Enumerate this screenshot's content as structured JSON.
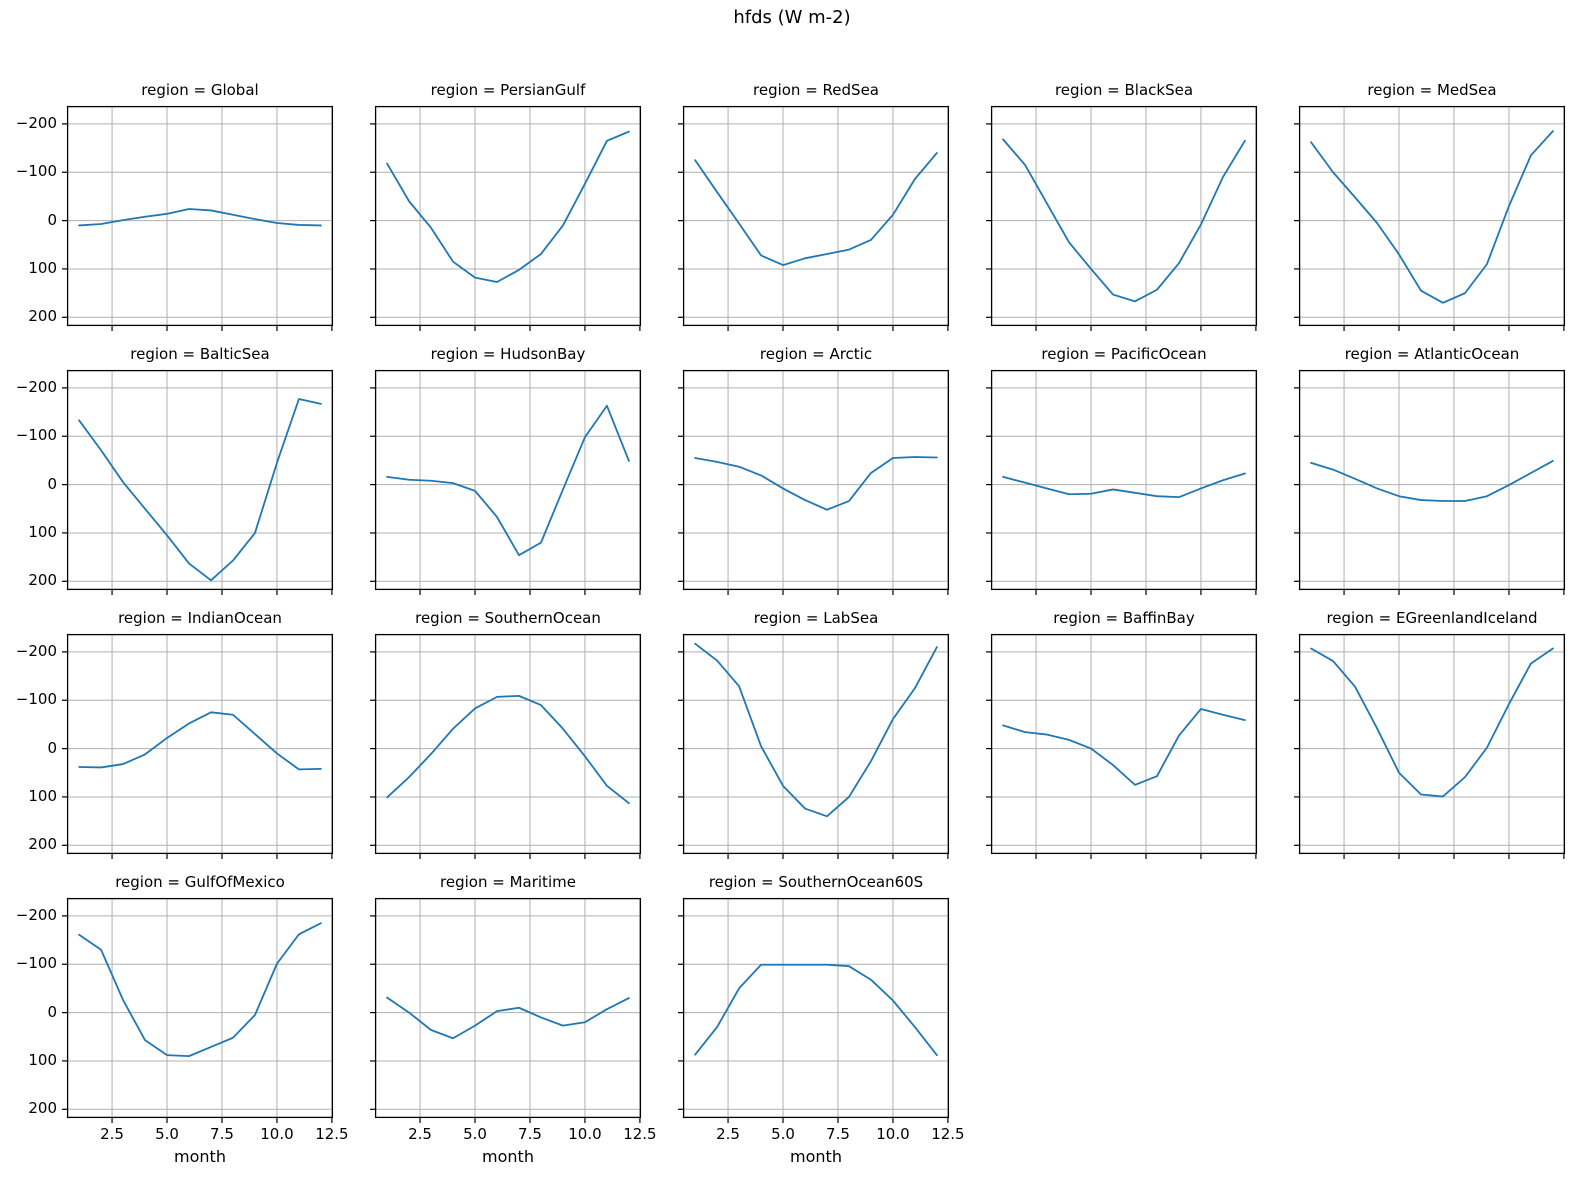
{
  "figure": {
    "title": "hfds (W m-2)",
    "background_color": "#ffffff"
  },
  "chart_data": {
    "type": "line",
    "title": "hfds (W m-2)",
    "xlabel": "month",
    "ylabel": "",
    "x": [
      1,
      2,
      3,
      4,
      5,
      6,
      7,
      8,
      9,
      10,
      11,
      12
    ],
    "x_ticks": [
      2.5,
      5.0,
      7.5,
      10.0,
      12.5
    ],
    "x_tick_labels": [
      "2.5",
      "5.0",
      "7.5",
      "10.0",
      "12.5"
    ],
    "y_ticks": [
      -200,
      -100,
      0,
      100,
      200
    ],
    "y_tick_labels": [
      "−200",
      "−100",
      "0",
      "100",
      "200"
    ],
    "xlim": [
      0.45,
      12.55
    ],
    "ylim": [
      -237,
      218
    ],
    "y_axis_inverted": true,
    "grid": true,
    "legend": "none",
    "line_color": "#1f77b4",
    "grid_color": "#b0b0b0",
    "spine_color": "#000000",
    "facet_label_prefix": "region = ",
    "facet_columns": 5,
    "facets": [
      {
        "region": "Global",
        "values": [
          10,
          7,
          -1,
          -8,
          -14,
          -24,
          -21,
          -12,
          -3,
          5,
          9,
          10
        ]
      },
      {
        "region": "PersianGulf",
        "values": [
          -118,
          -40,
          15,
          85,
          118,
          127,
          102,
          69,
          10,
          -76,
          -165,
          -184
        ]
      },
      {
        "region": "RedSea",
        "values": [
          -125,
          -59,
          6,
          72,
          92,
          78,
          69,
          60,
          40,
          -12,
          -86,
          -140
        ]
      },
      {
        "region": "BlackSea",
        "values": [
          -168,
          -115,
          -35,
          45,
          100,
          153,
          167,
          143,
          88,
          8,
          -90,
          -165
        ]
      },
      {
        "region": "MedSea",
        "values": [
          -162,
          -100,
          -48,
          5,
          70,
          145,
          170,
          150,
          90,
          -30,
          -135,
          -185
        ]
      },
      {
        "region": "BalticSea",
        "values": [
          -133,
          -71,
          -5,
          50,
          105,
          163,
          198,
          157,
          100,
          -45,
          -177,
          -167
        ]
      },
      {
        "region": "HudsonBay",
        "values": [
          -16,
          -10,
          -8,
          -3,
          13,
          67,
          146,
          120,
          10,
          -98,
          -163,
          -49
        ]
      },
      {
        "region": "Arctic",
        "values": [
          -55,
          -47,
          -37,
          -19,
          8,
          32,
          52,
          34,
          -24,
          -55,
          -57,
          -56
        ]
      },
      {
        "region": "PacificOcean",
        "values": [
          -16,
          -4,
          8,
          20,
          19,
          10,
          17,
          24,
          26,
          8,
          -9,
          -23
        ]
      },
      {
        "region": "AtlanticOcean",
        "values": [
          -45,
          -31,
          -12,
          8,
          24,
          32,
          34,
          34,
          24,
          1,
          -24,
          -49
        ]
      },
      {
        "region": "IndianOcean",
        "values": [
          38,
          39,
          32,
          12,
          -22,
          -52,
          -75,
          -70,
          -30,
          10,
          43,
          42
        ]
      },
      {
        "region": "SouthernOcean",
        "values": [
          101,
          59,
          11,
          -41,
          -83,
          -107,
          -109,
          -90,
          -41,
          16,
          77,
          113
        ]
      },
      {
        "region": "LabSea",
        "values": [
          -217,
          -182,
          -129,
          -5,
          77,
          124,
          140,
          100,
          26,
          -61,
          -125,
          -210
        ]
      },
      {
        "region": "BaffinBay",
        "values": [
          -48,
          -34,
          -29,
          -18,
          0,
          34,
          75,
          57,
          -27,
          -82,
          -70,
          -59
        ]
      },
      {
        "region": "EGreenlandIceland",
        "values": [
          -207,
          -181,
          -128,
          -42,
          50,
          95,
          99,
          59,
          -2,
          -92,
          -176,
          -207
        ]
      },
      {
        "region": "GulfOfMexico",
        "values": [
          -161,
          -130,
          -26,
          57,
          88,
          90,
          71,
          52,
          5,
          -101,
          -162,
          -185
        ]
      },
      {
        "region": "Maritime",
        "values": [
          -31,
          0,
          36,
          53,
          27,
          -3,
          -10,
          10,
          27,
          20,
          -7,
          -30
        ]
      },
      {
        "region": "SouthernOcean60S",
        "values": [
          87,
          30,
          -50,
          -99,
          -99,
          -99,
          -99,
          -96,
          -68,
          -25,
          30,
          88
        ]
      }
    ]
  }
}
